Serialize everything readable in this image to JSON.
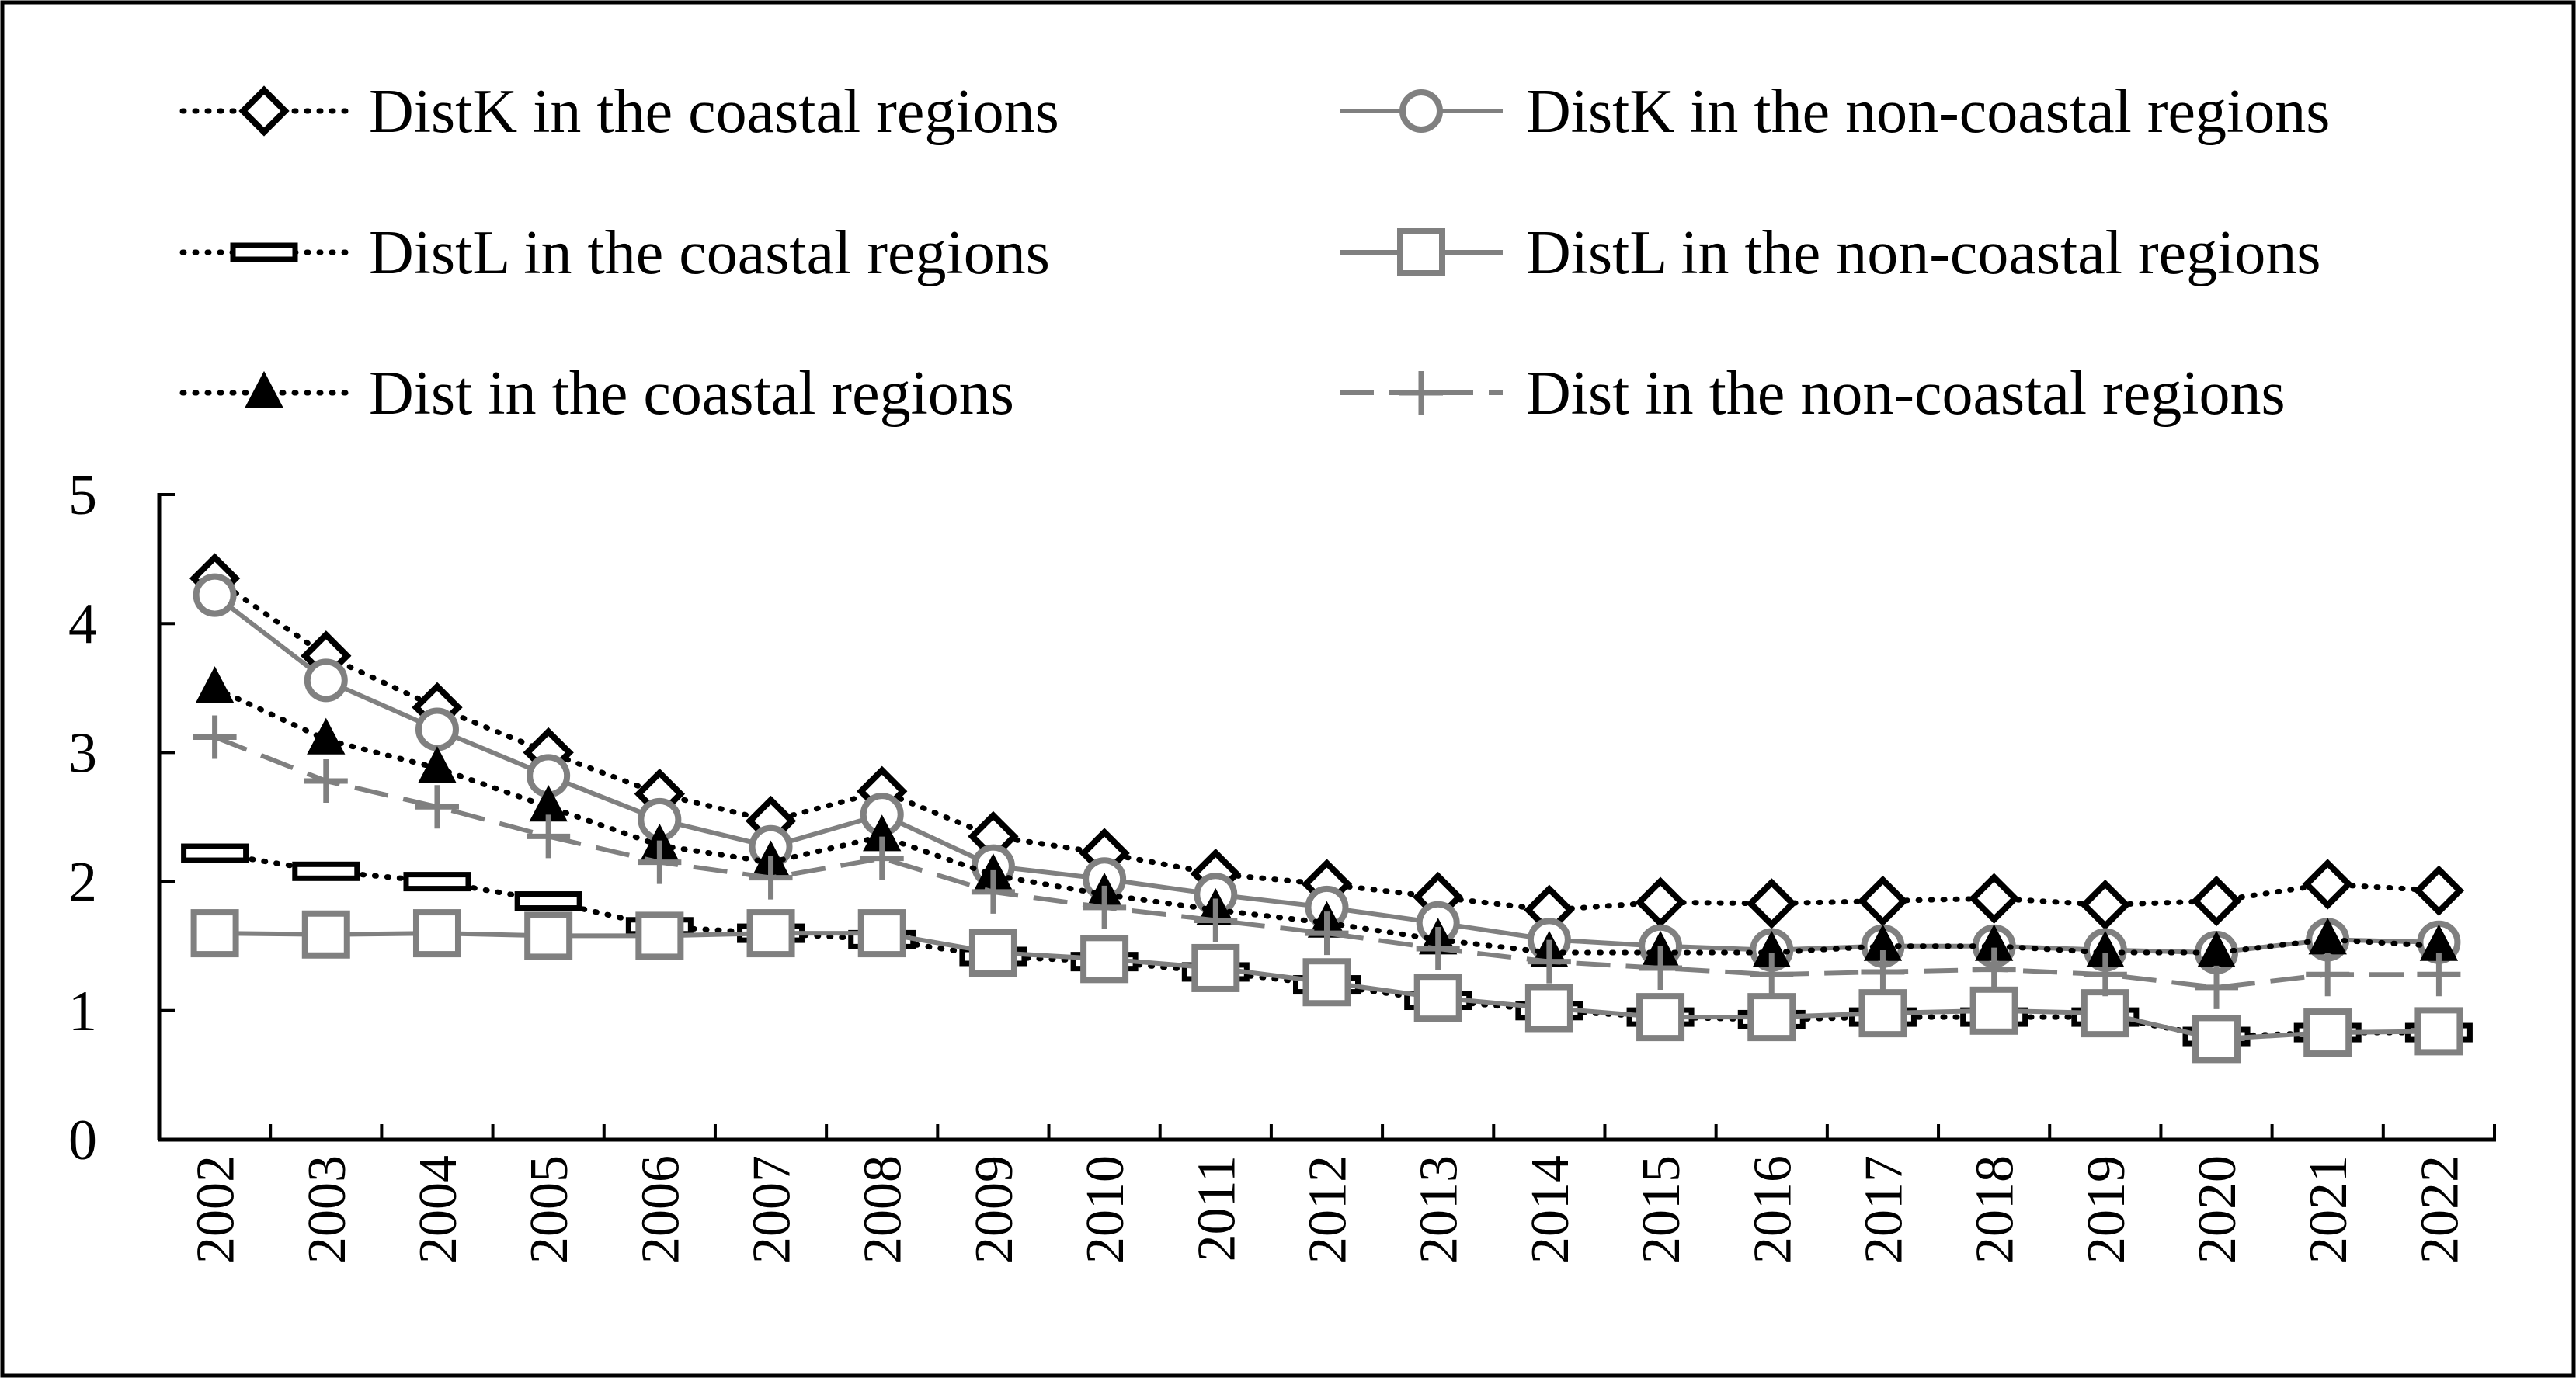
{
  "chart_data": {
    "type": "line",
    "title": "",
    "xlabel": "",
    "ylabel": "",
    "categories": [
      "2002",
      "2003",
      "2004",
      "2005",
      "2006",
      "2007",
      "2008",
      "2009",
      "2010",
      "2011",
      "2012",
      "2013",
      "2014",
      "2015",
      "2016",
      "2017",
      "2018",
      "2019",
      "2020",
      "2021",
      "2022"
    ],
    "ylim": [
      0,
      5
    ],
    "yticks": [
      "0",
      "1",
      "2",
      "3",
      "4",
      "5"
    ],
    "grid": false,
    "legend_position": "top",
    "series": [
      {
        "name": "DistK in the coastal regions",
        "marker": "diamond",
        "line": "dotted",
        "color": "#000000",
        "values": [
          4.35,
          3.75,
          3.35,
          3.0,
          2.68,
          2.47,
          2.7,
          2.35,
          2.22,
          2.06,
          1.98,
          1.88,
          1.78,
          1.84,
          1.83,
          1.85,
          1.87,
          1.82,
          1.85,
          1.98,
          1.93
        ]
      },
      {
        "name": "DistK in the non-coastal regions",
        "marker": "circle",
        "line": "solid",
        "color": "#808080",
        "values": [
          4.22,
          3.56,
          3.18,
          2.82,
          2.48,
          2.27,
          2.52,
          2.12,
          2.02,
          1.9,
          1.8,
          1.68,
          1.55,
          1.5,
          1.47,
          1.5,
          1.5,
          1.47,
          1.45,
          1.55,
          1.53
        ]
      },
      {
        "name": "DistL in the coastal regions",
        "marker": "bar",
        "line": "dotted",
        "color": "#000000",
        "values": [
          2.22,
          2.08,
          2.0,
          1.85,
          1.65,
          1.6,
          1.55,
          1.42,
          1.38,
          1.3,
          1.2,
          1.08,
          1.0,
          0.95,
          0.93,
          0.95,
          0.95,
          0.95,
          0.8,
          0.83,
          0.83
        ]
      },
      {
        "name": "DistL in the non-coastal regions",
        "marker": "square",
        "line": "solid",
        "color": "#808080",
        "values": [
          1.6,
          1.59,
          1.6,
          1.58,
          1.58,
          1.6,
          1.6,
          1.45,
          1.4,
          1.33,
          1.22,
          1.1,
          1.02,
          0.95,
          0.95,
          0.98,
          1.0,
          0.98,
          0.78,
          0.83,
          0.84
        ]
      },
      {
        "name": "Dist in the coastal regions",
        "marker": "triangle",
        "line": "dotted",
        "color": "#000000",
        "values": [
          3.5,
          3.1,
          2.88,
          2.58,
          2.28,
          2.15,
          2.35,
          2.05,
          1.9,
          1.78,
          1.68,
          1.55,
          1.45,
          1.45,
          1.45,
          1.5,
          1.5,
          1.45,
          1.45,
          1.55,
          1.5
        ]
      },
      {
        "name": "Dist in the non-coastal regions",
        "marker": "plus",
        "line": "dashed",
        "color": "#808080",
        "values": [
          3.12,
          2.78,
          2.58,
          2.35,
          2.15,
          2.03,
          2.18,
          1.92,
          1.8,
          1.7,
          1.6,
          1.48,
          1.38,
          1.33,
          1.28,
          1.3,
          1.32,
          1.28,
          1.18,
          1.28,
          1.28
        ]
      }
    ]
  }
}
